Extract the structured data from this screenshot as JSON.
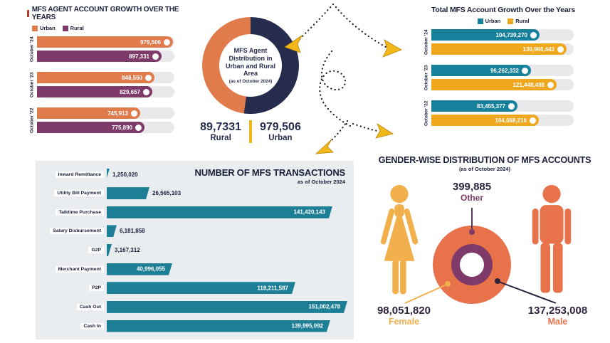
{
  "colors": {
    "urban_agent": "#E07B4C",
    "rural_agent": "#7E3A68",
    "urban_account": "#17819B",
    "rural_account": "#EFA81D",
    "donut_navy": "#252C4E",
    "transactions_teal": "#1C7F96",
    "female_yellow": "#F2B04D",
    "male_orange": "#E8724A",
    "other_purple": "#7E3A68",
    "arrow_gold": "#F2B719"
  },
  "chart_data": [
    {
      "type": "bar",
      "orientation": "horizontal",
      "title": "MFS AGENT ACCOUNT GROWTH OVER THE YEARS",
      "legend_position": "top-left",
      "categories": [
        "October '24",
        "October '23",
        "October '22"
      ],
      "series": [
        {
          "name": "Urban",
          "color": "#E07B4C",
          "values": [
            979506,
            848550,
            745913
          ],
          "labels": [
            "979,506",
            "848,550",
            "745,913"
          ]
        },
        {
          "name": "Rural",
          "color": "#7E3A68",
          "values": [
            897331,
            829657,
            775890
          ],
          "labels": [
            "897,331",
            "829,657",
            "775,890"
          ]
        }
      ]
    },
    {
      "type": "pie",
      "title": "MFS Agent Distribution in Urban and Rural Area",
      "subtitle": "(as of October 2024)",
      "slices": [
        {
          "name": "Urban",
          "value": 979506,
          "color": "#252C4E"
        },
        {
          "name": "Rural",
          "value": 897331,
          "color": "#E07B4C"
        }
      ],
      "footer": {
        "rural_value": "89,7331",
        "rural_label": "Rural",
        "urban_value": "979,506",
        "urban_label": "Urban"
      }
    },
    {
      "type": "bar",
      "orientation": "horizontal",
      "title": "Total MFS Account Growth Over the Years",
      "legend_position": "top-center",
      "categories": [
        "October '24",
        "October '23",
        "October '22"
      ],
      "series": [
        {
          "name": "Urban",
          "color": "#17819B",
          "values": [
            104739270,
            96262332,
            83455377
          ],
          "labels": [
            "104,739,270",
            "96,262,332",
            "83,455,377"
          ]
        },
        {
          "name": "Rural",
          "color": "#EFA81D",
          "values": [
            130965443,
            121448498,
            104068216
          ],
          "labels": [
            "130,965,443",
            "121,448,498",
            "104,068,216"
          ]
        }
      ]
    },
    {
      "type": "bar",
      "orientation": "horizontal",
      "title": "NUMBER OF MFS TRANSACTIONS",
      "subtitle": "as of October 2024",
      "color": "#1C7F96",
      "categories": [
        "Inward Remittance",
        "Utility Bill Payment",
        "Talktime Purchase",
        "Salary Disbursement",
        "G2P",
        "Merchant Payment",
        "P2P",
        "Cash Out",
        "Cash In"
      ],
      "values": [
        1250020,
        26565103,
        141420143,
        6181858,
        3167312,
        40996055,
        118211587,
        151002478,
        139995092
      ],
      "labels": [
        "1,250,020",
        "26,565,103",
        "141,420,143",
        "6,181,858",
        "3,167,312",
        "40,996,055",
        "118,211,587",
        "151,002,478",
        "139,995,092"
      ]
    },
    {
      "type": "pie",
      "title": "GENDER-WISE DISTRIBUTION OF MFS ACCOUNTS",
      "subtitle": "(as of October 2024)",
      "slices": [
        {
          "name": "Other",
          "value": 399885,
          "label": "399,885",
          "color": "#7E3A68"
        },
        {
          "name": "Female",
          "value": 98051820,
          "label": "98,051,820",
          "color": "#F2B04D"
        },
        {
          "name": "Male",
          "value": 137253008,
          "label": "137,253,008",
          "color": "#E8724A"
        }
      ]
    }
  ]
}
